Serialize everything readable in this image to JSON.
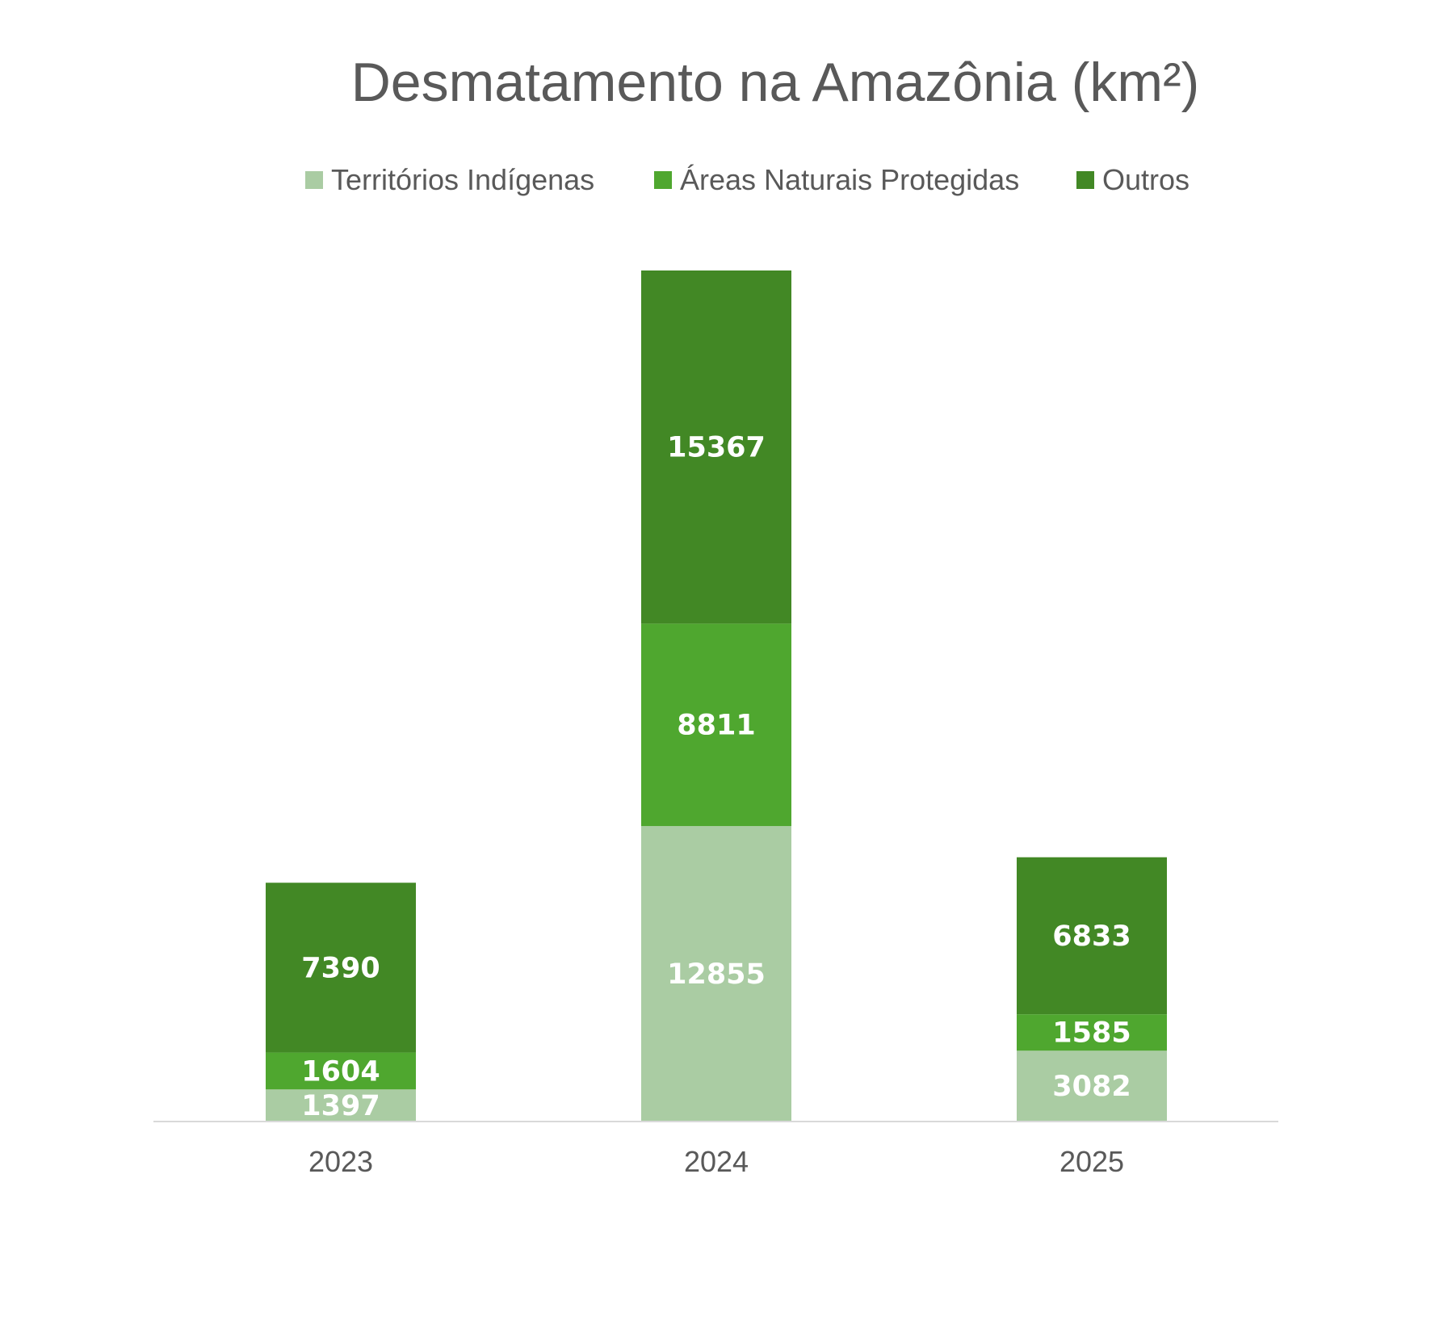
{
  "chart_data": {
    "type": "bar",
    "stacked": true,
    "title": "Desmatamento na Amazônia (km²)",
    "categories": [
      "2023",
      "2024",
      "2025"
    ],
    "series": [
      {
        "name": "Territórios Indígenas",
        "values": [
          1397,
          12855,
          3082
        ],
        "color": "#aacca3"
      },
      {
        "name": "Áreas Naturais Protegidas",
        "values": [
          1604,
          8811,
          1585
        ],
        "color": "#4fa72f"
      },
      {
        "name": "Outros",
        "values": [
          7390,
          15367,
          6833
        ],
        "color": "#428825"
      }
    ],
    "xlabel": "",
    "ylabel": "",
    "ylim": [
      0,
      37033
    ],
    "grid": false,
    "legend_position": "top",
    "data_labels": true,
    "axis_color": "#d9d9d9",
    "text_color": "#595959"
  }
}
